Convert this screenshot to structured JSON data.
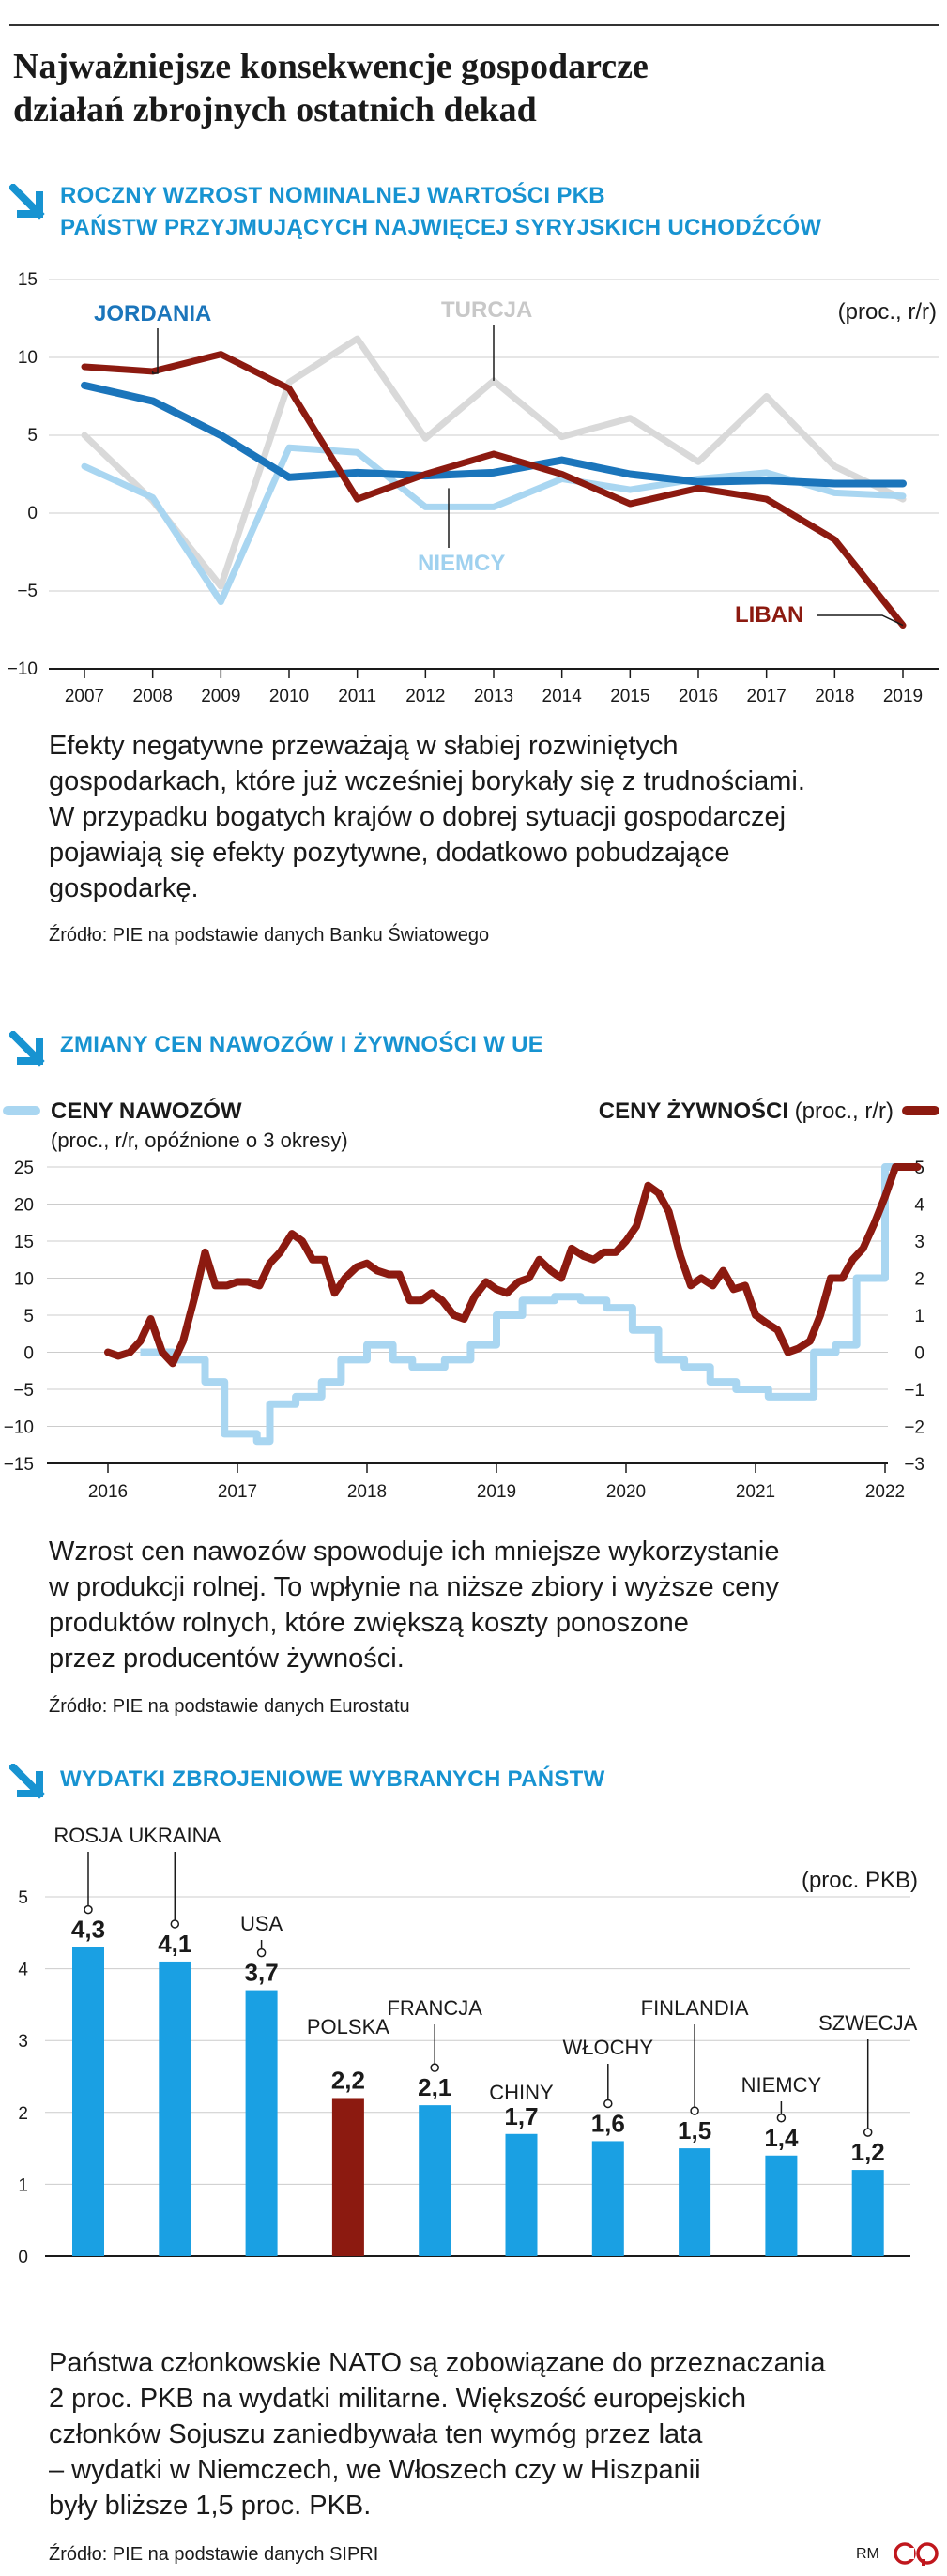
{
  "header": {
    "title_line1": "Najważniejsze konsekwencje gospodarcze",
    "title_line2": "działań zbrojnych ostatnich dekad"
  },
  "section1": {
    "title_line1": "ROCZNY WZROST NOMINALNEJ WARTOŚCI PKB",
    "title_line2": "PAŃSTW PRZYJMUJĄCYCH NAJWIĘCEJ SYRYJSKICH UCHODŹCÓW",
    "body_line1": "Efekty negatywne przeważają w słabiej rozwiniętych",
    "body_line2": "gospodarkach, które już wcześniej borykały się z trudnościami.",
    "body_line3": "W przypadku bogatych krajów o dobrej sytuacji gospodarczej",
    "body_line4": "pojawiają się efekty pozytywne, dodatkowo pobudzające",
    "body_line5": "gospodarkę.",
    "source": "Źródło: PIE na podstawie danych Banku Światowego"
  },
  "section2": {
    "title": "ZMIANY CEN NAWOZÓW I ŻYWNOŚCI W UE",
    "body_line1": "Wzrost cen nawozów spowoduje ich mniejsze wykorzystanie",
    "body_line2": "w produkcji rolnej. To wpłynie na niższe zbiory i wyższe ceny",
    "body_line3": "produktów rolnych, które zwiększą koszty ponoszone",
    "body_line4": "przez producentów żywności.",
    "source": "Źródło: PIE na podstawie danych Eurostatu"
  },
  "section3": {
    "title": "WYDATKI ZBROJENIOWE WYBRANYCH PAŃSTW",
    "body_line1": "Państwa członkowskie NATO są zobowiązane do przeznaczania",
    "body_line2": "2 proc. PKB na wydatki militarne. Większość europejskich",
    "body_line3": "członków Sojuszu zaniedbywała ten wymóg przez lata",
    "body_line4": "– wydatki w Niemczech, we Włoszech czy w Hiszpanii",
    "body_line5": "były bliższe 1,5 proc. PKB.",
    "source": "Źródło: PIE na podstawie danych SIPRI"
  },
  "footer": {
    "initials": "RM"
  },
  "colors": {
    "accent_blue": "#1793d1",
    "jordania": "#1b75bb",
    "turcja": "#d9d9d9",
    "niemcy": "#a9d6f1",
    "liban": "#8c1a10",
    "nawozy": "#a9d6f1",
    "zywnosc": "#8c1a10",
    "bar_default": "#1aa0e3",
    "bar_highlight": "#8c1a10"
  },
  "chart_data": [
    {
      "type": "line",
      "unit_label": "(proc., r/r)",
      "x": [
        2007,
        2008,
        2009,
        2010,
        2011,
        2012,
        2013,
        2014,
        2015,
        2016,
        2017,
        2018,
        2019
      ],
      "ylim": [
        -10,
        15
      ],
      "yticks": [
        15,
        10,
        5,
        0,
        -5,
        -10
      ],
      "series": [
        {
          "name": "TURCJA",
          "values": [
            5.0,
            0.8,
            -4.7,
            8.4,
            11.2,
            4.8,
            8.5,
            4.9,
            6.1,
            3.3,
            7.5,
            3.0,
            0.9
          ]
        },
        {
          "name": "NIEMCY",
          "values": [
            3.0,
            1.0,
            -5.7,
            4.2,
            3.9,
            0.4,
            0.4,
            2.2,
            1.5,
            2.2,
            2.6,
            1.3,
            1.1
          ]
        },
        {
          "name": "JORDANIA",
          "values": [
            8.2,
            7.2,
            5.0,
            2.3,
            2.6,
            2.4,
            2.6,
            3.4,
            2.5,
            2.0,
            2.1,
            1.9,
            1.9
          ]
        },
        {
          "name": "LIBAN",
          "values": [
            9.4,
            9.1,
            10.2,
            8.0,
            0.9,
            2.5,
            3.8,
            2.5,
            0.6,
            1.6,
            0.9,
            -1.7,
            -7.2
          ]
        }
      ]
    },
    {
      "type": "line",
      "left_axis_label": "(proc., r/r, opóźnione o 3 okresy)",
      "right_axis_label": "(proc., r/r)",
      "x_ticks": [
        "2016",
        "2017",
        "2018",
        "2019",
        "2020",
        "2021",
        "2022"
      ],
      "ylim_left": [
        -15,
        25
      ],
      "yticks_left": [
        25,
        20,
        15,
        10,
        5,
        0,
        -5,
        -10,
        -15
      ],
      "ylim_right": [
        -3,
        5
      ],
      "yticks_right": [
        5,
        4,
        3,
        2,
        1,
        0,
        -1,
        -2,
        -3
      ],
      "series": [
        {
          "name": "CENY NAWOZÓW",
          "axis": "left",
          "step": true,
          "x": [
            2016.25,
            2016.5,
            2016.75,
            2016.9,
            2017.15,
            2017.25,
            2017.45,
            2017.65,
            2017.8,
            2018.0,
            2018.2,
            2018.35,
            2018.6,
            2018.8,
            2019.0,
            2019.2,
            2019.45,
            2019.65,
            2019.85,
            2020.05,
            2020.25,
            2020.45,
            2020.65,
            2020.85,
            2021.1,
            2021.3,
            2021.45,
            2021.62,
            2021.78,
            2022.0,
            2022.18
          ],
          "values": [
            0,
            -1,
            -4,
            -11,
            -12,
            -7,
            -6,
            -4,
            -1,
            1,
            -1,
            -2,
            -1,
            1,
            5,
            7,
            7.5,
            7,
            6,
            3,
            -1,
            -2,
            -4,
            -5,
            -6,
            -6,
            0,
            1,
            10,
            25,
            25
          ]
        },
        {
          "name": "CENY ŻYWNOŚCI",
          "axis": "right",
          "x": [
            2016.0,
            2016.08,
            2016.17,
            2016.25,
            2016.33,
            2016.42,
            2016.5,
            2016.58,
            2016.67,
            2016.75,
            2016.83,
            2016.92,
            2017.0,
            2017.08,
            2017.17,
            2017.25,
            2017.33,
            2017.42,
            2017.5,
            2017.58,
            2017.67,
            2017.75,
            2017.83,
            2017.92,
            2018.0,
            2018.08,
            2018.17,
            2018.25,
            2018.33,
            2018.42,
            2018.5,
            2018.58,
            2018.67,
            2018.75,
            2018.83,
            2018.92,
            2019.0,
            2019.08,
            2019.17,
            2019.25,
            2019.33,
            2019.42,
            2019.5,
            2019.58,
            2019.67,
            2019.75,
            2019.83,
            2019.92,
            2020.0,
            2020.08,
            2020.17,
            2020.25,
            2020.33,
            2020.42,
            2020.5,
            2020.58,
            2020.67,
            2020.75,
            2020.83,
            2020.92,
            2021.0,
            2021.08,
            2021.17,
            2021.25,
            2021.33,
            2021.42,
            2021.5,
            2021.58,
            2021.67,
            2021.75,
            2021.83,
            2021.92,
            2022.0,
            2022.08,
            2022.17,
            2022.25
          ],
          "values": [
            0.0,
            -0.1,
            0.0,
            0.3,
            0.9,
            0.0,
            -0.3,
            0.3,
            1.5,
            2.7,
            1.8,
            1.8,
            1.9,
            1.9,
            1.8,
            2.4,
            2.7,
            3.2,
            3.0,
            2.5,
            2.5,
            1.6,
            2.0,
            2.3,
            2.4,
            2.2,
            2.1,
            2.1,
            1.4,
            1.4,
            1.6,
            1.4,
            1.0,
            0.9,
            1.5,
            1.9,
            1.7,
            1.6,
            1.9,
            2.0,
            2.5,
            2.2,
            2.0,
            2.8,
            2.6,
            2.5,
            2.7,
            2.7,
            3.0,
            3.4,
            4.5,
            4.3,
            3.8,
            2.6,
            1.8,
            2.0,
            1.8,
            2.2,
            1.7,
            1.8,
            1.0,
            0.8,
            0.6,
            0.0,
            0.1,
            0.3,
            1.0,
            2.0,
            2.0,
            2.5,
            2.8,
            3.5,
            4.2,
            5.0,
            5.0,
            5.0
          ]
        }
      ]
    },
    {
      "type": "bar",
      "unit_label": "(proc. PKB)",
      "ylim": [
        0,
        5
      ],
      "yticks": [
        5,
        4,
        3,
        2,
        1,
        0
      ],
      "categories": [
        "ROSJA",
        "UKRAINA",
        "USA",
        "POLSKA",
        "FRANCJA",
        "CHINY",
        "WŁOCHY",
        "FINLANDIA",
        "NIEMCY",
        "SZWECJA"
      ],
      "values": [
        4.3,
        4.1,
        3.7,
        2.2,
        2.1,
        1.7,
        1.6,
        1.5,
        1.4,
        1.2
      ],
      "value_labels": [
        "4,3",
        "4,1",
        "3,7",
        "2,2",
        "2,1",
        "1,7",
        "1,6",
        "1,5",
        "1,4",
        "1,2"
      ],
      "highlight": "POLSKA"
    }
  ]
}
